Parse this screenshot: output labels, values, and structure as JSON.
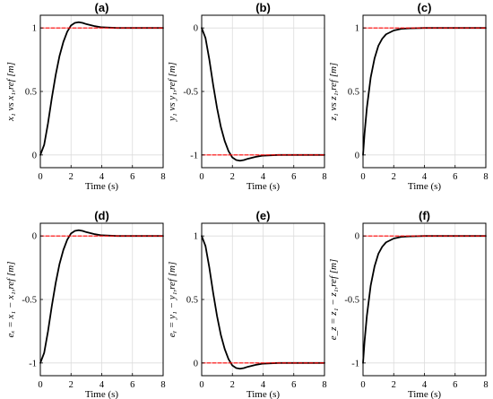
{
  "chart_data": [
    {
      "type": "line",
      "title": "(a)",
      "xlabel": "Time (s)",
      "ylabel": "x₁ vs x₁,ref [m]",
      "xlim": [
        0,
        8
      ],
      "ylim": [
        -0.1,
        1.1
      ],
      "xticks": [
        0,
        2,
        4,
        6,
        8
      ],
      "xtick_labels": [
        "0",
        "2",
        "4",
        "6",
        "8"
      ],
      "yticks": [
        0,
        0.5,
        1
      ],
      "ytick_labels": [
        "0",
        "0.5",
        "1"
      ],
      "grid": true,
      "series": [
        {
          "role": "response",
          "color": "#000000",
          "dash": "solid",
          "x": [
            0,
            0.25,
            0.5,
            0.75,
            1.0,
            1.25,
            1.5,
            1.75,
            2.0,
            2.25,
            2.5,
            2.75,
            3.0,
            3.5,
            4.0,
            5.0,
            6.0,
            7.0,
            8.0
          ],
          "y": [
            0,
            0.08,
            0.25,
            0.45,
            0.63,
            0.78,
            0.89,
            0.97,
            1.02,
            1.04,
            1.045,
            1.04,
            1.03,
            1.015,
            1.005,
            1.0,
            1.0,
            1.0,
            1.0
          ]
        },
        {
          "role": "reference",
          "color": "#ff0000",
          "dash": "dashed",
          "x": [
            0,
            8
          ],
          "y": [
            1,
            1
          ]
        }
      ]
    },
    {
      "type": "line",
      "title": "(b)",
      "xlabel": "Time (s)",
      "ylabel": "y₁ vs y₁,ref [m]",
      "xlim": [
        0,
        8
      ],
      "ylim": [
        -1.1,
        0.1
      ],
      "xticks": [
        0,
        2,
        4,
        6,
        8
      ],
      "xtick_labels": [
        "0",
        "2",
        "4",
        "6",
        "8"
      ],
      "yticks": [
        -1,
        -0.5,
        0
      ],
      "ytick_labels": [
        "-1",
        "-0.5",
        "0"
      ],
      "grid": true,
      "series": [
        {
          "role": "response",
          "color": "#000000",
          "dash": "solid",
          "x": [
            0,
            0.25,
            0.5,
            0.75,
            1.0,
            1.25,
            1.5,
            1.75,
            2.0,
            2.25,
            2.5,
            2.75,
            3.0,
            3.5,
            4.0,
            5.0,
            6.0,
            7.0,
            8.0
          ],
          "y": [
            0,
            -0.08,
            -0.25,
            -0.45,
            -0.63,
            -0.78,
            -0.89,
            -0.97,
            -1.02,
            -1.04,
            -1.045,
            -1.04,
            -1.03,
            -1.015,
            -1.005,
            -1.0,
            -1.0,
            -1.0,
            -1.0
          ]
        },
        {
          "role": "reference",
          "color": "#ff0000",
          "dash": "dashed",
          "x": [
            0,
            8
          ],
          "y": [
            -1,
            -1
          ]
        }
      ]
    },
    {
      "type": "line",
      "title": "(c)",
      "xlabel": "Time (s)",
      "ylabel": "z₁ vs z₁,ref [m]",
      "xlim": [
        0,
        8
      ],
      "ylim": [
        -0.1,
        1.1
      ],
      "xticks": [
        0,
        2,
        4,
        6,
        8
      ],
      "xtick_labels": [
        "0",
        "2",
        "4",
        "6",
        "8"
      ],
      "yticks": [
        0,
        0.5,
        1
      ],
      "ytick_labels": [
        "0",
        "0.5",
        "1"
      ],
      "grid": true,
      "series": [
        {
          "role": "response",
          "color": "#000000",
          "dash": "solid",
          "x": [
            0,
            0.1,
            0.25,
            0.5,
            0.75,
            1.0,
            1.25,
            1.5,
            2.0,
            2.5,
            3.0,
            4.0,
            5.0,
            6.0,
            8.0
          ],
          "y": [
            0,
            0.17,
            0.37,
            0.61,
            0.76,
            0.86,
            0.915,
            0.95,
            0.98,
            0.993,
            0.997,
            1.0,
            1.0,
            1.0,
            1.0
          ]
        },
        {
          "role": "reference",
          "color": "#ff0000",
          "dash": "dashed",
          "x": [
            0,
            8
          ],
          "y": [
            1,
            1
          ]
        }
      ]
    },
    {
      "type": "line",
      "title": "(d)",
      "xlabel": "Time (s)",
      "ylabel": "eₓ = x₁ − x₁,ref [m]",
      "xlim": [
        0,
        8
      ],
      "ylim": [
        -1.1,
        0.1
      ],
      "xticks": [
        0,
        2,
        4,
        6,
        8
      ],
      "xtick_labels": [
        "0",
        "2",
        "4",
        "6",
        "8"
      ],
      "yticks": [
        -1,
        -0.5,
        0
      ],
      "ytick_labels": [
        "-1",
        "-0.5",
        "0"
      ],
      "grid": true,
      "series": [
        {
          "role": "error",
          "color": "#000000",
          "dash": "solid",
          "x": [
            0,
            0.25,
            0.5,
            0.75,
            1.0,
            1.25,
            1.5,
            1.75,
            2.0,
            2.25,
            2.5,
            2.75,
            3.0,
            3.5,
            4.0,
            5.0,
            6.0,
            7.0,
            8.0
          ],
          "y": [
            -1.0,
            -0.92,
            -0.75,
            -0.55,
            -0.37,
            -0.22,
            -0.11,
            -0.03,
            0.02,
            0.04,
            0.045,
            0.04,
            0.03,
            0.015,
            0.005,
            0.0,
            0.0,
            0.0,
            0.0
          ]
        },
        {
          "role": "zero",
          "color": "#ff0000",
          "dash": "dashed",
          "x": [
            0,
            8
          ],
          "y": [
            0,
            0
          ]
        }
      ]
    },
    {
      "type": "line",
      "title": "(e)",
      "xlabel": "Time (s)",
      "ylabel": "eᵧ = y₁ − y₁,ref [m]",
      "xlim": [
        0,
        8
      ],
      "ylim": [
        -0.1,
        1.1
      ],
      "xticks": [
        0,
        2,
        4,
        6,
        8
      ],
      "xtick_labels": [
        "0",
        "2",
        "4",
        "6",
        "8"
      ],
      "yticks": [
        0,
        0.5,
        1
      ],
      "ytick_labels": [
        "0",
        "0.5",
        "1"
      ],
      "grid": true,
      "series": [
        {
          "role": "error",
          "color": "#000000",
          "dash": "solid",
          "x": [
            0,
            0.25,
            0.5,
            0.75,
            1.0,
            1.25,
            1.5,
            1.75,
            2.0,
            2.25,
            2.5,
            2.75,
            3.0,
            3.5,
            4.0,
            5.0,
            6.0,
            7.0,
            8.0
          ],
          "y": [
            1.0,
            0.92,
            0.75,
            0.55,
            0.37,
            0.22,
            0.11,
            0.03,
            -0.02,
            -0.04,
            -0.045,
            -0.04,
            -0.03,
            -0.015,
            -0.005,
            0.0,
            0.0,
            0.0,
            0.0
          ]
        },
        {
          "role": "zero",
          "color": "#ff0000",
          "dash": "dashed",
          "x": [
            0,
            8
          ],
          "y": [
            0,
            0
          ]
        }
      ]
    },
    {
      "type": "line",
      "title": "(f)",
      "xlabel": "Time (s)",
      "ylabel": "e_z = z₁ − z₁,ref [m]",
      "xlim": [
        0,
        8
      ],
      "ylim": [
        -1.1,
        0.1
      ],
      "xticks": [
        0,
        2,
        4,
        6,
        8
      ],
      "xtick_labels": [
        "0",
        "2",
        "4",
        "6",
        "8"
      ],
      "yticks": [
        -1,
        -0.5,
        0
      ],
      "ytick_labels": [
        "-1",
        "-0.5",
        "0"
      ],
      "grid": true,
      "series": [
        {
          "role": "error",
          "color": "#000000",
          "dash": "solid",
          "x": [
            0,
            0.1,
            0.25,
            0.5,
            0.75,
            1.0,
            1.25,
            1.5,
            2.0,
            2.5,
            3.0,
            4.0,
            5.0,
            6.0,
            8.0
          ],
          "y": [
            -1.0,
            -0.83,
            -0.63,
            -0.39,
            -0.24,
            -0.14,
            -0.085,
            -0.05,
            -0.02,
            -0.007,
            -0.003,
            0.0,
            0.0,
            0.0,
            0.0
          ]
        },
        {
          "role": "zero",
          "color": "#ff0000",
          "dash": "dashed",
          "x": [
            0,
            8
          ],
          "y": [
            0,
            0
          ]
        }
      ]
    }
  ],
  "colors": {
    "response": "#000000",
    "reference": "#ff0000",
    "grid": "#dcdcdc",
    "axis": "#000000"
  }
}
